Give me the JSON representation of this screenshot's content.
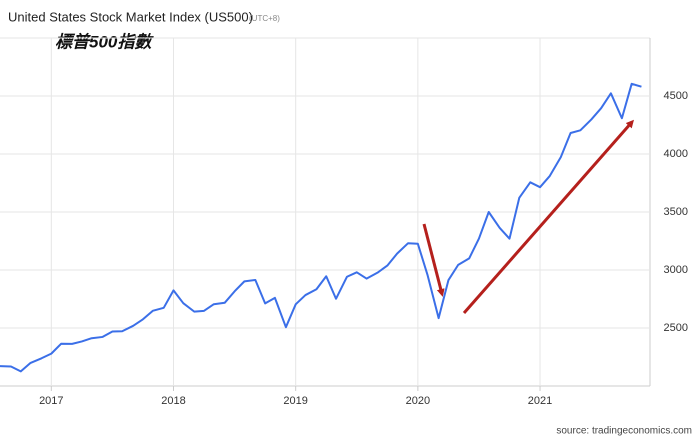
{
  "chart_data": {
    "type": "line",
    "title": "United States Stock Market Index (US500)",
    "subtitle": "(UTC+8)",
    "annotation": "標普500指數",
    "source": "source: tradingeconomics.com",
    "x": [
      2016.58,
      2016.67,
      2016.75,
      2016.83,
      2016.92,
      2017,
      2017.08,
      2017.17,
      2017.25,
      2017.33,
      2017.42,
      2017.5,
      2017.58,
      2017.67,
      2017.75,
      2017.83,
      2017.92,
      2018,
      2018.08,
      2018.17,
      2018.25,
      2018.33,
      2018.42,
      2018.5,
      2018.58,
      2018.67,
      2018.75,
      2018.83,
      2018.92,
      2019,
      2019.08,
      2019.17,
      2019.25,
      2019.33,
      2019.42,
      2019.5,
      2019.58,
      2019.67,
      2019.75,
      2019.83,
      2019.92,
      2020,
      2020.08,
      2020.17,
      2020.25,
      2020.33,
      2020.42,
      2020.5,
      2020.58,
      2020.67,
      2020.75,
      2020.83,
      2020.92,
      2021,
      2021.08,
      2021.17,
      2021.25,
      2021.33,
      2021.42,
      2021.5,
      2021.58,
      2021.67,
      2021.75,
      2021.83
    ],
    "series": [
      {
        "name": "US500",
        "color": "#3b6fe8",
        "values": [
          2171,
          2168,
          2126,
          2199,
          2239,
          2279,
          2364,
          2363,
          2384,
          2412,
          2423,
          2470,
          2472,
          2519,
          2575,
          2648,
          2674,
          2824,
          2714,
          2641,
          2648,
          2705,
          2718,
          2816,
          2902,
          2914,
          2712,
          2760,
          2507,
          2704,
          2784,
          2834,
          2946,
          2752,
          2942,
          2980,
          2926,
          2977,
          3038,
          3141,
          3231,
          3226,
          2954,
          2585,
          2912,
          3044,
          3100,
          3271,
          3500,
          3363,
          3270,
          3622,
          3756,
          3714,
          3811,
          3973,
          4181,
          4204,
          4298,
          4395,
          4523,
          4308,
          4605,
          4580
        ]
      }
    ],
    "xlim": [
      2016.58,
      2021.9
    ],
    "xticks": [
      2017,
      2018,
      2019,
      2020,
      2021
    ],
    "ylim": [
      2000,
      5000
    ],
    "yticks": [
      2500,
      3000,
      3500,
      4000,
      4500
    ],
    "grid": true
  }
}
